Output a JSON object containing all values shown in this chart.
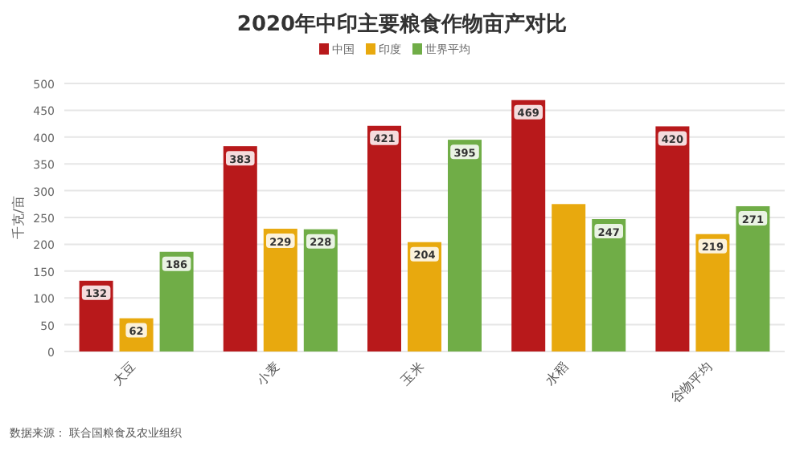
{
  "chart_data": {
    "type": "bar",
    "title": "2020年中印主要粮食作物亩产对比",
    "ylabel": "千克/亩",
    "categories": [
      "大豆",
      "小麦",
      "玉米",
      "水稻",
      "谷物平均"
    ],
    "series": [
      {
        "name": "中国",
        "color": "#b8191b",
        "values": [
          132,
          383,
          421,
          469,
          420
        ],
        "value_labels": [
          "132",
          "383",
          "421",
          "469",
          "420"
        ]
      },
      {
        "name": "印度",
        "color": "#e8a90e",
        "values": [
          62,
          229,
          204,
          275,
          219
        ],
        "value_labels": [
          "62",
          "229",
          "204",
          null,
          "219"
        ]
      },
      {
        "name": "世界平均",
        "color": "#70ad47",
        "values": [
          186,
          228,
          395,
          247,
          271
        ],
        "value_labels": [
          "186",
          "228",
          "395",
          "247",
          "271"
        ]
      }
    ],
    "ylim": [
      0,
      500
    ],
    "yticks": [
      0,
      50,
      100,
      150,
      200,
      250,
      300,
      350,
      400,
      450,
      500
    ],
    "grid": "y",
    "legend": "top",
    "annotations": [
      "数据来源： 联合国粮食及农业组织"
    ]
  }
}
